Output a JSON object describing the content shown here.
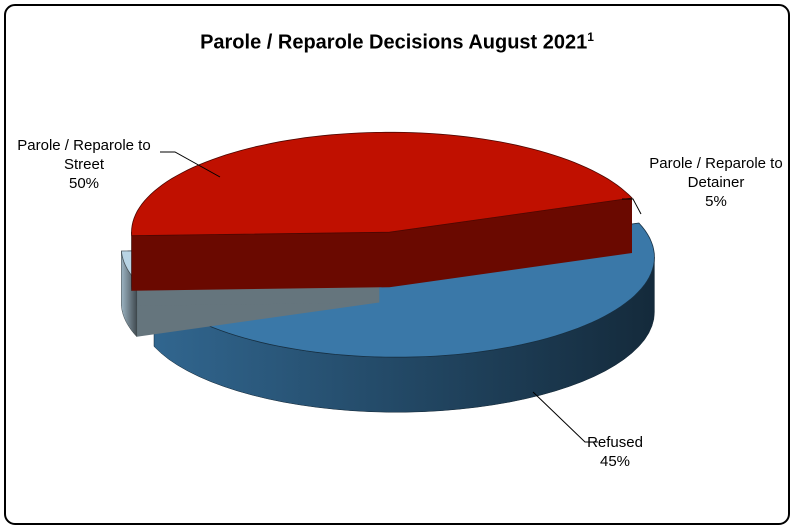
{
  "chart_data": {
    "type": "pie",
    "title": "Parole / Reparole Decisions August 2021",
    "title_superscript": "1",
    "categories": [
      "Parole / Reparole to Street",
      "Parole / Reparole to Detainer",
      "Refused"
    ],
    "values": [
      50,
      5,
      45
    ],
    "value_labels": [
      "50%",
      "5%",
      "45%"
    ],
    "colors": [
      "#3a78a8",
      "#b8d4e4",
      "#c01000"
    ]
  }
}
